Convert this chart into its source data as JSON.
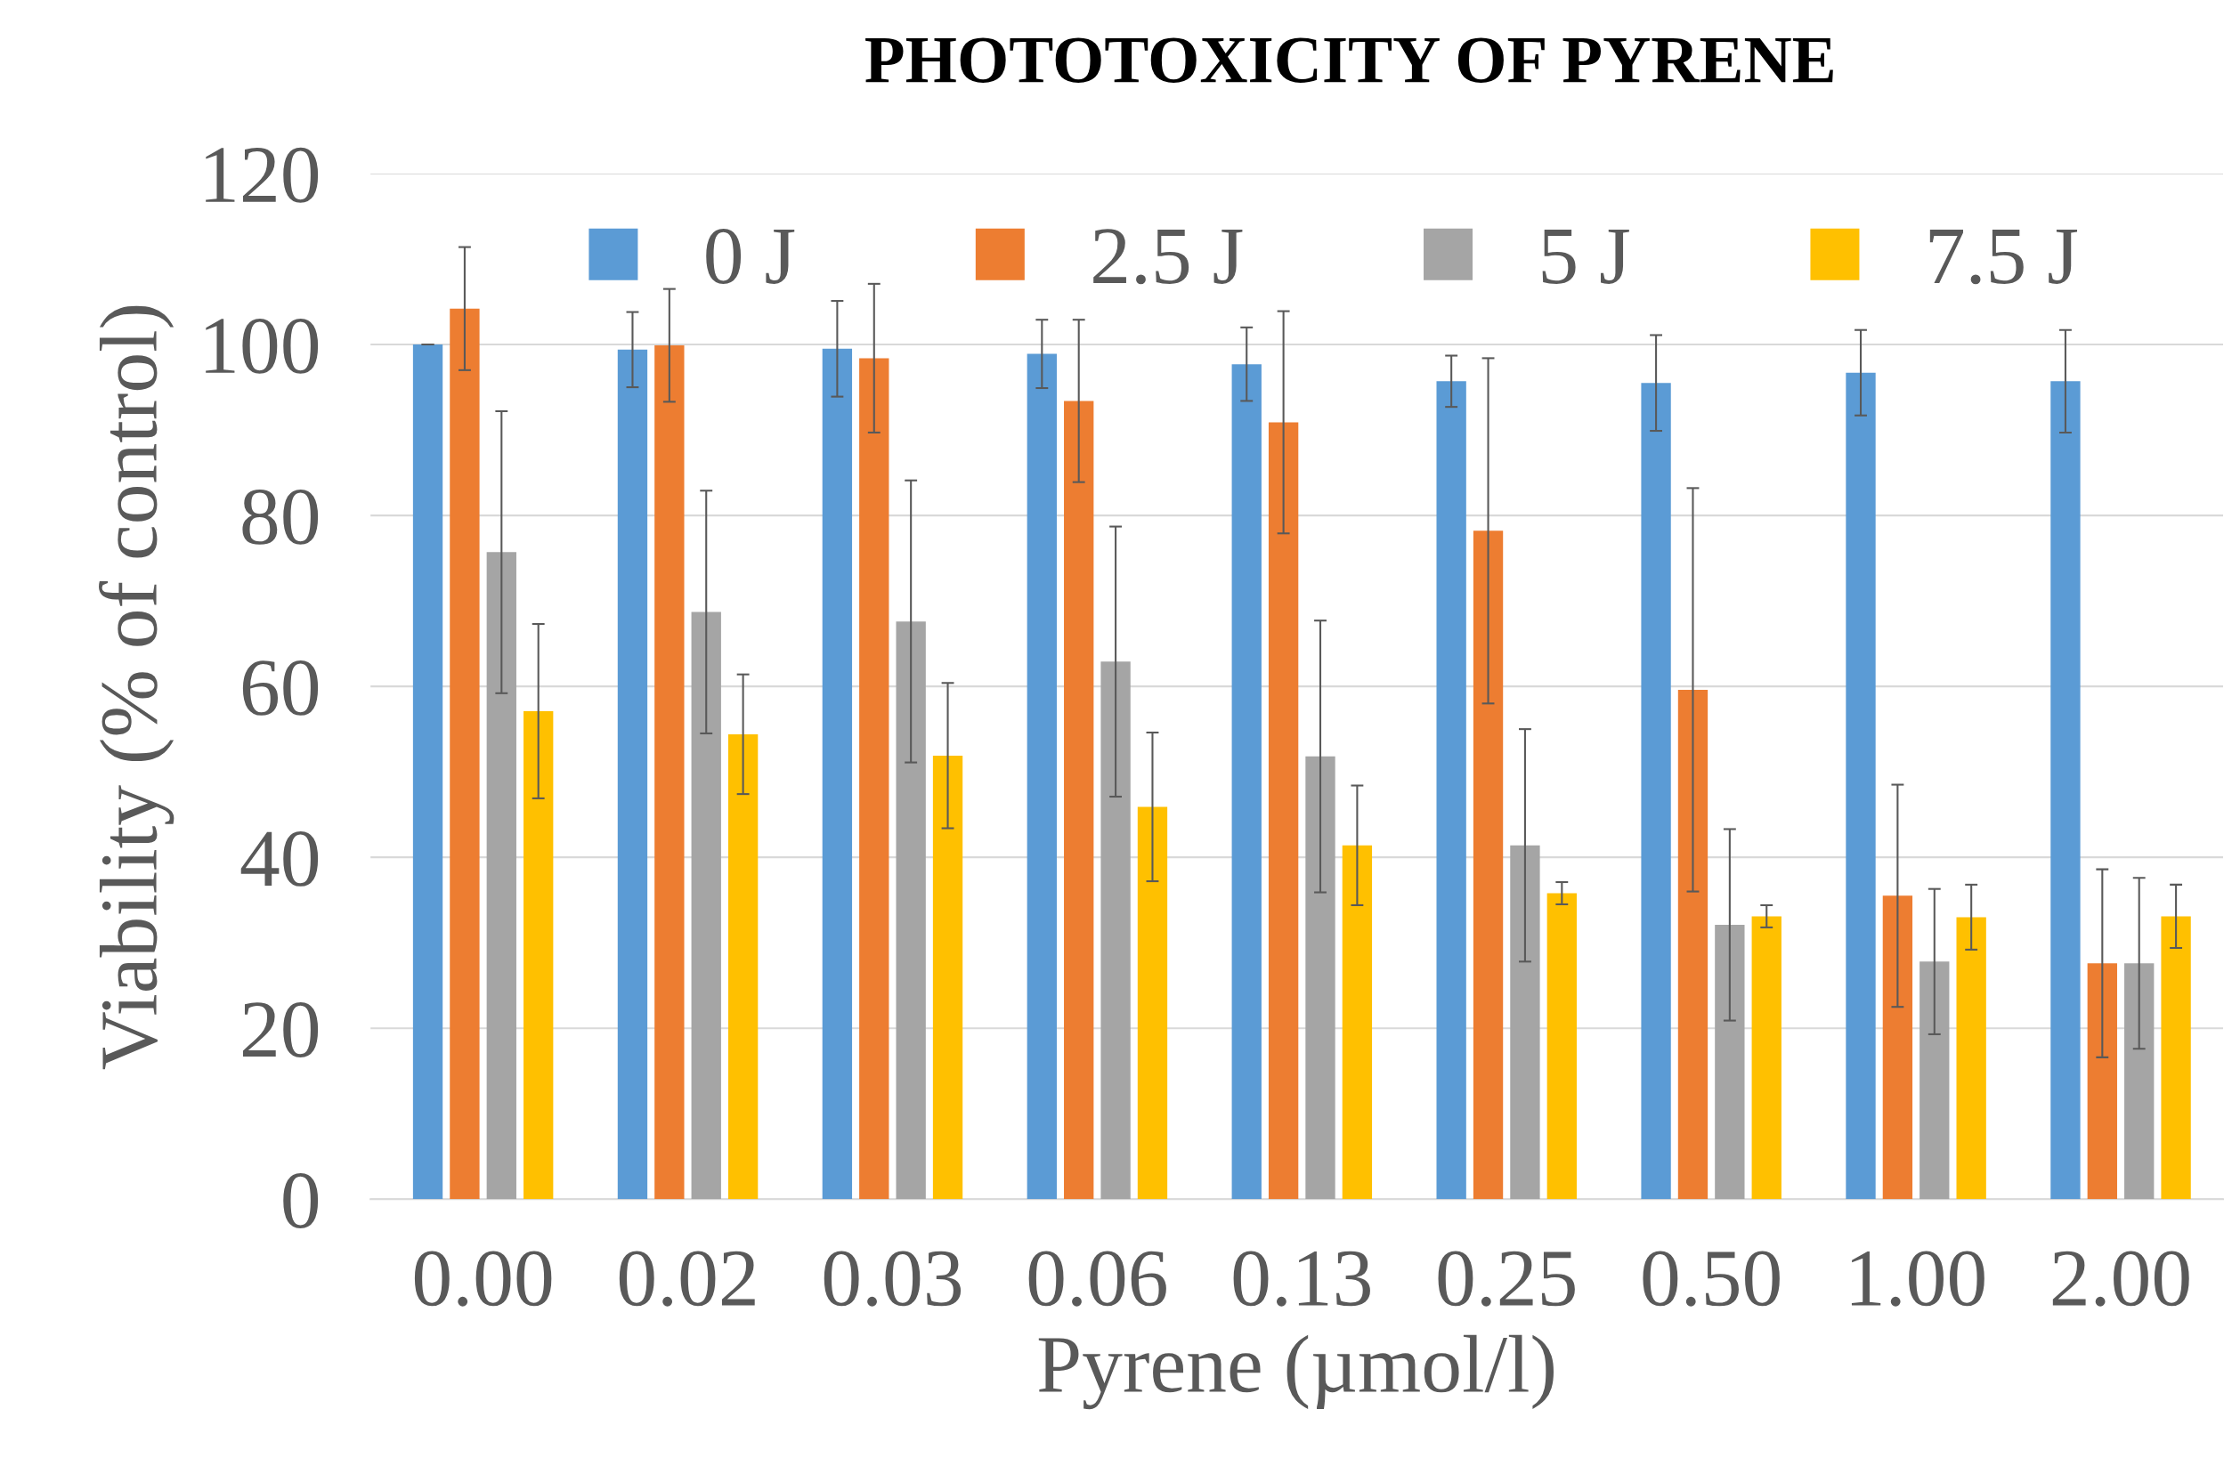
{
  "chart_data": {
    "type": "bar",
    "title": "PHOTOTOXICITY OF PYRENE",
    "xlabel": "Pyrene (µmol/l)",
    "ylabel": "Viability (% of control)",
    "categories": [
      "0.00",
      "0.02",
      "0.03",
      "0.06",
      "0.13",
      "0.25",
      "0.50",
      "1.00",
      "2.00"
    ],
    "series": [
      {
        "name": "0 J",
        "color": "#5b9bd5",
        "values": [
          100.0,
          99.4,
          99.5,
          98.9,
          97.7,
          95.7,
          95.5,
          96.7,
          95.7
        ],
        "errors": [
          0,
          4.4,
          5.6,
          4,
          4.3,
          3,
          5.6,
          5,
          6
        ]
      },
      {
        "name": "2.5 J",
        "color": "#ed7d31",
        "values": [
          104.2,
          99.9,
          98.4,
          93.4,
          90.9,
          78.2,
          59.6,
          35.5,
          27.6
        ],
        "errors": [
          7.2,
          6.6,
          8.7,
          9.5,
          13,
          20.2,
          23.6,
          13,
          11
        ]
      },
      {
        "name": "5 J",
        "color": "#a5a5a5",
        "values": [
          75.7,
          68.7,
          67.6,
          62.9,
          51.8,
          41.4,
          32.1,
          27.8,
          27.6
        ],
        "errors": [
          16.5,
          14.2,
          16.5,
          15.8,
          15.9,
          13.6,
          11.2,
          8.5,
          10
        ]
      },
      {
        "name": "7.5 J",
        "color": "#ffc000",
        "values": [
          57.1,
          54.4,
          51.9,
          45.9,
          41.4,
          35.8,
          33.1,
          33.0,
          33.1
        ],
        "errors": [
          10.2,
          7,
          8.5,
          8.7,
          7,
          1.3,
          1.3,
          3.8,
          3.7
        ]
      }
    ],
    "ylim": [
      0,
      120
    ],
    "yticks": [
      0,
      20,
      40,
      60,
      80,
      100,
      120
    ],
    "grid": "y",
    "legend": "top"
  }
}
